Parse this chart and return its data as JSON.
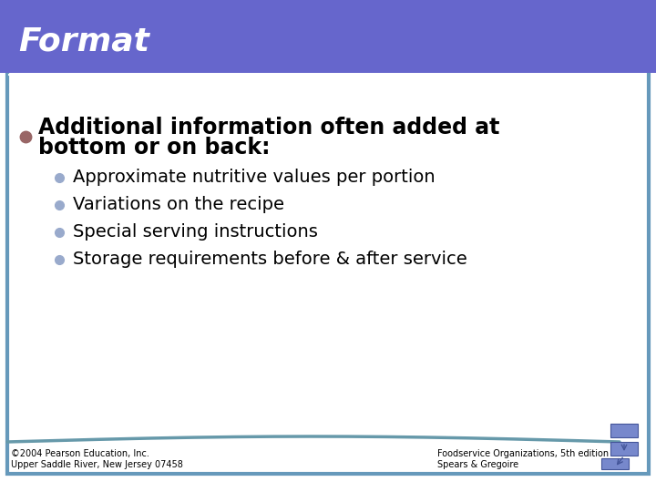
{
  "title": "Format",
  "title_bg_color": "#6666CC",
  "title_text_color": "#FFFFFF",
  "slide_bg_color": "#FFFFFF",
  "border_color": "#6699BB",
  "main_bullet_color": "#996666",
  "sub_bullet_color": "#99AACC",
  "main_bullet_text": "Additional information often added at\nbottom or on back:",
  "sub_bullets": [
    "Approximate nutritive values per portion",
    "Variations on the recipe",
    "Special serving instructions",
    "Storage requirements before & after service"
  ],
  "footer_left_line1": "©2004 Pearson Education, Inc.",
  "footer_left_line2": "Upper Saddle River, New Jersey 07458",
  "footer_right_line1": "Foodservice Organizations, 5th edition",
  "footer_right_line2": "Spears & Gregoire",
  "main_text_size": 17,
  "sub_text_size": 14,
  "footer_text_size": 7
}
